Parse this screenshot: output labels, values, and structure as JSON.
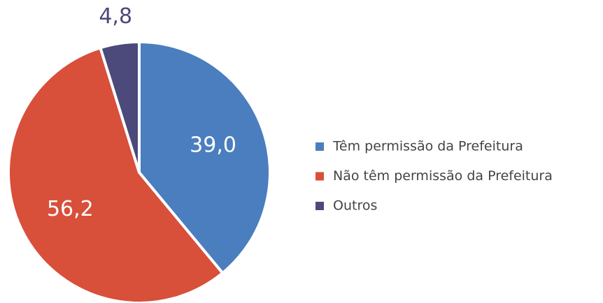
{
  "chart_data": {
    "type": "pie",
    "categories": [
      "Têm permissão da Prefeitura",
      "Não têm permissão da Prefeitura",
      "Outros"
    ],
    "values": [
      39.0,
      56.2,
      4.8
    ],
    "value_labels": [
      "39,0",
      "56,2",
      "4,8"
    ],
    "colors": [
      "#4a7ebf",
      "#d84f3a",
      "#4b4a7a"
    ],
    "legend": "right"
  }
}
